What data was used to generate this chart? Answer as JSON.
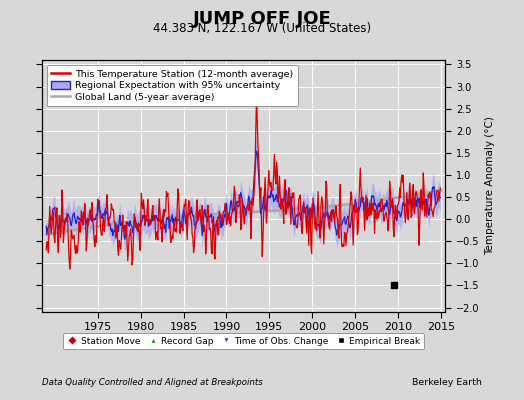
{
  "title": "JUMP OFF JOE",
  "subtitle": "44.383 N, 122.167 W (United States)",
  "ylabel": "Temperature Anomaly (°C)",
  "xlabel_note": "Data Quality Controlled and Aligned at Breakpoints",
  "credit": "Berkeley Earth",
  "xlim": [
    1968.5,
    2015.5
  ],
  "ylim": [
    -2.1,
    3.6
  ],
  "yticks": [
    -2,
    -1.5,
    -1,
    -0.5,
    0,
    0.5,
    1,
    1.5,
    2,
    2.5,
    3,
    3.5
  ],
  "xticks": [
    1975,
    1980,
    1985,
    1990,
    1995,
    2000,
    2005,
    2010,
    2015
  ],
  "bg_color": "#d8d8d8",
  "plot_bg_color": "#d8d8d8",
  "grid_color": "#ffffff",
  "station_line_color": "#dd0000",
  "regional_line_color": "#2222cc",
  "regional_fill_color": "#aaaaee",
  "global_line_color": "#aaaaaa",
  "empirical_break_year": 2009.5,
  "empirical_break_value": -1.5,
  "legend_station": "This Temperature Station (12-month average)",
  "legend_regional": "Regional Expectation with 95% uncertainty",
  "legend_global": "Global Land (5-year average)",
  "legend_marker1": "Station Move",
  "legend_marker2": "Record Gap",
  "legend_marker3": "Time of Obs. Change",
  "legend_marker4": "Empirical Break"
}
